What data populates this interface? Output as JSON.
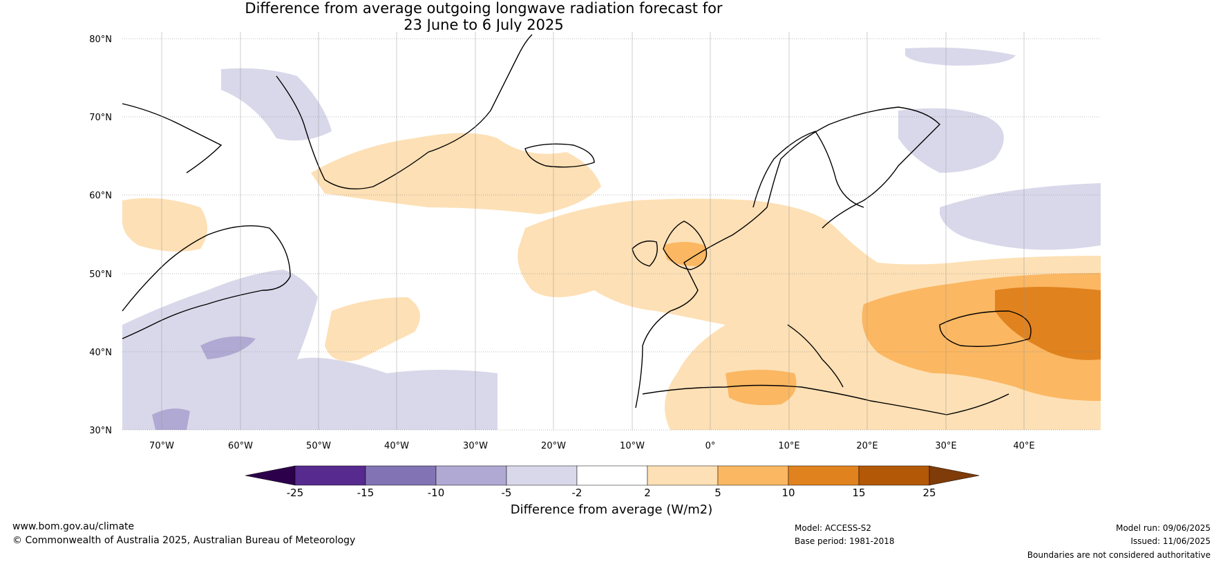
{
  "title_line1": "Difference from average outgoing longwave radiation forecast for",
  "title_line2": "23 June to 6 July 2025",
  "lat_labels": [
    "80°N",
    "70°N",
    "60°N",
    "50°N",
    "40°N",
    "30°N"
  ],
  "lon_labels": [
    "70°W",
    "60°W",
    "50°W",
    "40°W",
    "30°W",
    "20°W",
    "10°W",
    "0°",
    "10°E",
    "20°E",
    "30°E",
    "40°E"
  ],
  "colorbar": {
    "ticks": [
      "-25",
      "-15",
      "-10",
      "-5",
      "-2",
      "2",
      "5",
      "10",
      "15",
      "25"
    ],
    "colors": [
      "#562a8e",
      "#8274b4",
      "#b0a9d3",
      "#d9d8ea",
      "#ffffff",
      "#fde0b5",
      "#fbb762",
      "#e0821e",
      "#b35806"
    ],
    "min_color": "#2d004b",
    "max_color": "#7f3b08",
    "label": "Difference from average (W/m2)"
  },
  "footer": {
    "site": "www.bom.gov.au/climate",
    "copyright": "© Commonwealth of Australia 2025, Australian Bureau of Meteorology",
    "model": "Model: ACCESS-S2",
    "base_period": "Base period: 1981-2018",
    "model_run": "Model run: 09/06/2025",
    "issued": "Issued: 11/06/2025",
    "disclaimer": "Boundaries are not considered authoritative"
  }
}
